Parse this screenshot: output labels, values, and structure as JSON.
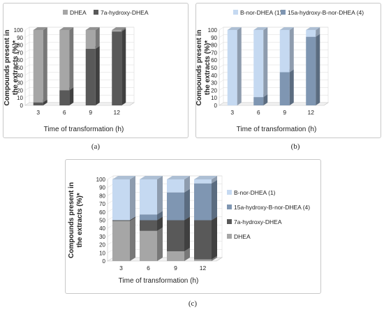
{
  "captions": [
    "(a)",
    "(b)",
    "(c)"
  ],
  "chart_data": [
    {
      "type": "bar",
      "stacked": true,
      "three_d": true,
      "legend_position": "top",
      "xlabel": "Time of transformation (h)",
      "ylabel": "Compounds present in the extracts (%)*",
      "ylim": [
        0,
        100
      ],
      "yticks": [
        0,
        10,
        20,
        30,
        40,
        50,
        60,
        70,
        80,
        90,
        100
      ],
      "categories": [
        "3",
        "6",
        "9",
        "12"
      ],
      "series": [
        {
          "name": "7a-hydroxy-DHEA",
          "color": "#595959",
          "values": [
            4,
            20,
            75,
            98
          ]
        },
        {
          "name": "DHEA",
          "color": "#a6a6a6",
          "values": [
            96,
            80,
            25,
            2
          ]
        }
      ],
      "legend_order": [
        "DHEA",
        "7a-hydroxy-DHEA"
      ]
    },
    {
      "type": "bar",
      "stacked": true,
      "three_d": true,
      "legend_position": "top",
      "xlabel": "Time of transformation (h)",
      "ylabel": "Compounds present in the extracts (%)*",
      "ylim": [
        0,
        100
      ],
      "yticks": [
        0,
        10,
        20,
        30,
        40,
        50,
        60,
        70,
        80,
        90,
        100
      ],
      "categories": [
        "3",
        "6",
        "9",
        "12"
      ],
      "series": [
        {
          "name": "15a-hydroxy-B-nor-DHEA (4)",
          "color": "#7f96b2",
          "values": [
            0,
            11,
            44,
            91
          ]
        },
        {
          "name": "B-nor-DHEA (1)",
          "color": "#c5d9f1",
          "values": [
            100,
            89,
            56,
            9
          ]
        }
      ],
      "legend_order": [
        "B-nor-DHEA (1)",
        "15a-hydroxy-B-nor-DHEA (4)"
      ]
    },
    {
      "type": "bar",
      "stacked": true,
      "three_d": true,
      "legend_position": "right",
      "xlabel": "Time of transformation (h)",
      "ylabel": "Compounds present in the extracts (%)*",
      "ylim": [
        0,
        100
      ],
      "yticks": [
        0,
        10,
        20,
        30,
        40,
        50,
        60,
        70,
        80,
        90,
        100
      ],
      "categories": [
        "3",
        "6",
        "9",
        "12"
      ],
      "series": [
        {
          "name": "DHEA",
          "color": "#a6a6a6",
          "values": [
            49,
            37,
            12,
            2
          ]
        },
        {
          "name": "7a-hydroxy-DHEA",
          "color": "#595959",
          "values": [
            1,
            13,
            38,
            48
          ]
        },
        {
          "name": "15a-hydroxy-B-nor-DHEA (4)",
          "color": "#7f96b2",
          "values": [
            0,
            7,
            34,
            45
          ]
        },
        {
          "name": "B-nor-DHEA (1)",
          "color": "#c5d9f1",
          "values": [
            50,
            43,
            16,
            5
          ]
        }
      ],
      "legend_order": [
        "B-nor-DHEA (1)",
        "15a-hydroxy-B-nor-DHEA (4)",
        "7a-hydroxy-DHEA",
        "DHEA"
      ]
    }
  ]
}
